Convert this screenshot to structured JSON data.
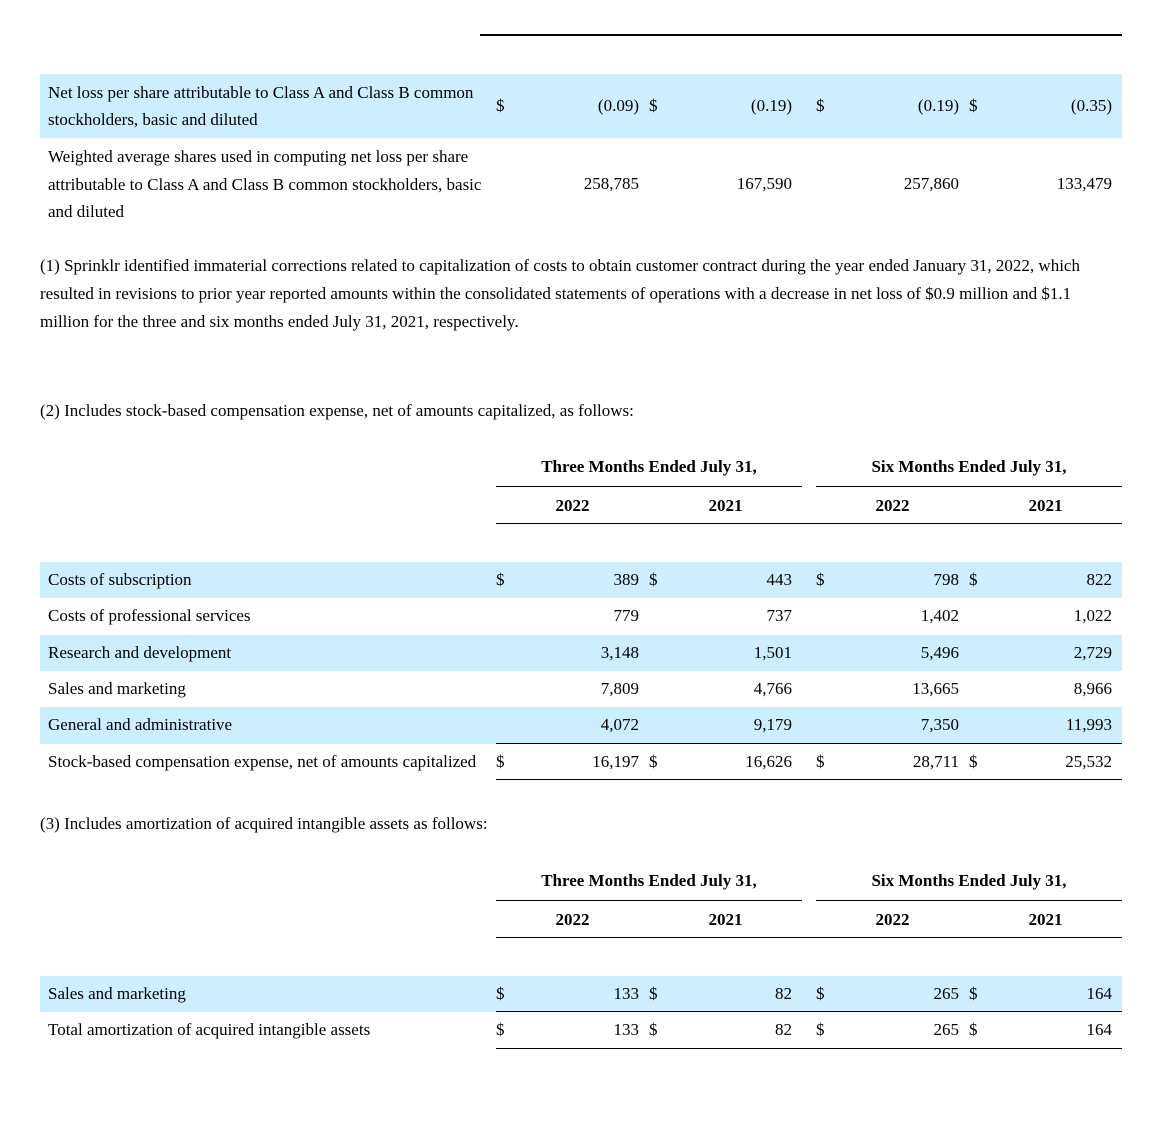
{
  "currency": "$",
  "colors": {
    "row_highlight": "#cceeff",
    "text": "#000000",
    "background": "#ffffff"
  },
  "eps_table": {
    "rows": [
      {
        "label": "Net loss per share attributable to Class A and Class B common stockholders, basic and diluted",
        "values": [
          "(0.09)",
          "(0.19)",
          "(0.19)",
          "(0.35)"
        ],
        "highlighted": true,
        "currency_prefix": true
      },
      {
        "label": "Weighted average shares used in computing net loss per share attributable to Class A and Class B common stockholders, basic and diluted",
        "values": [
          "258,785",
          "167,590",
          "257,860",
          "133,479"
        ],
        "highlighted": false,
        "currency_prefix": false
      }
    ]
  },
  "footnotes": {
    "note1": "(1) Sprinklr identified immaterial corrections related to capitalization of costs to obtain customer contract during the year ended January 31, 2022, which resulted in revisions to prior year reported amounts within the consolidated statements of operations with a decrease in net loss of $0.9 million and $1.1 million for the three and six months ended July 31, 2021, respectively.",
    "note2": "(2) Includes stock-based compensation expense, net of amounts capitalized, as follows:",
    "note3": "(3) Includes amortization of acquired intangible assets as follows:"
  },
  "period_headers": {
    "three_months": "Three Months Ended July 31,",
    "six_months": "Six Months Ended July 31,",
    "years": [
      "2022",
      "2021",
      "2022",
      "2021"
    ]
  },
  "sbc_table": {
    "rows": [
      {
        "label": "Costs of subscription",
        "values": [
          "389",
          "443",
          "798",
          "822"
        ],
        "highlighted": true,
        "currency_prefix": true
      },
      {
        "label": "Costs of professional services",
        "values": [
          "779",
          "737",
          "1,402",
          "1,022"
        ],
        "highlighted": false,
        "currency_prefix": false
      },
      {
        "label": "Research and development",
        "values": [
          "3,148",
          "1,501",
          "5,496",
          "2,729"
        ],
        "highlighted": true,
        "currency_prefix": false
      },
      {
        "label": "Sales and marketing",
        "values": [
          "7,809",
          "4,766",
          "13,665",
          "8,966"
        ],
        "highlighted": false,
        "currency_prefix": false
      },
      {
        "label": "General and administrative",
        "values": [
          "4,072",
          "9,179",
          "7,350",
          "11,993"
        ],
        "highlighted": true,
        "currency_prefix": false
      },
      {
        "label": "Stock-based compensation expense, net of amounts capitalized",
        "values": [
          "16,197",
          "16,626",
          "28,711",
          "25,532"
        ],
        "highlighted": false,
        "currency_prefix": true,
        "total": true
      }
    ]
  },
  "amort_table": {
    "rows": [
      {
        "label": "Sales and marketing",
        "values": [
          "133",
          "82",
          "265",
          "164"
        ],
        "highlighted": true,
        "currency_prefix": true
      },
      {
        "label": "Total amortization of acquired intangible assets",
        "values": [
          "133",
          "82",
          "265",
          "164"
        ],
        "highlighted": false,
        "currency_prefix": true,
        "total": true
      }
    ]
  }
}
